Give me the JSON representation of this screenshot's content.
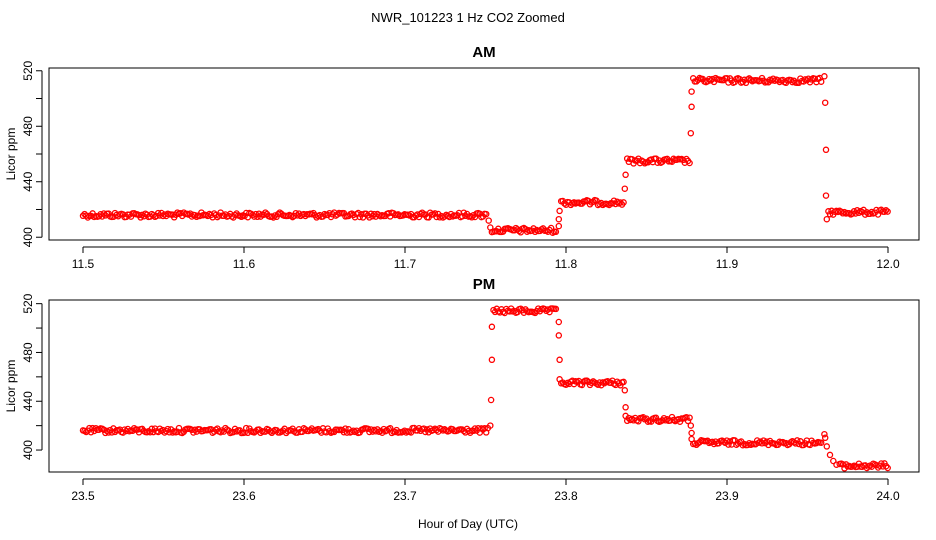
{
  "figure": {
    "title": "NWR_101223  1 Hz CO2 Zoomed",
    "xlabel": "Hour of Day (UTC)",
    "series_color": "#ff0000"
  },
  "chart_data": [
    {
      "type": "scatter",
      "title": "AM",
      "xlabel": "",
      "ylabel": "Licor ppm",
      "xlim": [
        11.5,
        12.0
      ],
      "ylim": [
        398,
        522
      ],
      "xticks": [
        11.5,
        11.6,
        11.7,
        11.8,
        11.9,
        12.0
      ],
      "xtick_labels": [
        "11.5",
        "11.6",
        "11.7",
        "11.8",
        "11.9",
        "12.0"
      ],
      "yticks": [
        400,
        420,
        440,
        460,
        480,
        500,
        520
      ],
      "ytick_labels": [
        "400",
        "",
        "440",
        "",
        "480",
        "",
        "520"
      ],
      "grid": false,
      "segments": [
        {
          "x": [
            11.5,
            11.751
          ],
          "y": 416
        },
        {
          "x": [
            11.754,
            11.794
          ],
          "y": 405
        },
        {
          "x": [
            11.797,
            11.836
          ],
          "y": 425
        },
        {
          "x": [
            11.838,
            11.877
          ],
          "y": 455
        },
        {
          "x": [
            11.879,
            11.959
          ],
          "y": 513
        },
        {
          "x": [
            11.963,
            12.0
          ],
          "y": 418
        }
      ],
      "transition_points": [
        {
          "x": 11.752,
          "y": 412
        },
        {
          "x": 11.753,
          "y": 407
        },
        {
          "x": 11.7955,
          "y": 408
        },
        {
          "x": 11.7955,
          "y": 413
        },
        {
          "x": 11.796,
          "y": 419
        },
        {
          "x": 11.8365,
          "y": 435
        },
        {
          "x": 11.837,
          "y": 445
        },
        {
          "x": 11.8775,
          "y": 475
        },
        {
          "x": 11.878,
          "y": 494
        },
        {
          "x": 11.878,
          "y": 505
        },
        {
          "x": 11.9605,
          "y": 516
        },
        {
          "x": 11.961,
          "y": 497
        },
        {
          "x": 11.9615,
          "y": 463
        },
        {
          "x": 11.9615,
          "y": 430
        },
        {
          "x": 11.962,
          "y": 413
        }
      ]
    },
    {
      "type": "scatter",
      "title": "PM",
      "xlabel": "",
      "ylabel": "Licor ppm",
      "xlim": [
        23.5,
        24.0
      ],
      "ylim": [
        382,
        523
      ],
      "xticks": [
        23.5,
        23.6,
        23.7,
        23.8,
        23.9,
        24.0
      ],
      "xtick_labels": [
        "23.5",
        "23.6",
        "23.7",
        "23.8",
        "23.9",
        "24.0"
      ],
      "yticks": [
        400,
        420,
        440,
        460,
        480,
        500,
        520
      ],
      "ytick_labels": [
        "400",
        "",
        "440",
        "",
        "480",
        "",
        "520"
      ],
      "grid": false,
      "segments": [
        {
          "x": [
            23.5,
            23.752
          ],
          "y": 416
        },
        {
          "x": [
            23.755,
            23.794
          ],
          "y": 514
        },
        {
          "x": [
            23.797,
            23.836
          ],
          "y": 455
        },
        {
          "x": [
            23.838,
            23.877
          ],
          "y": 425
        },
        {
          "x": [
            23.879,
            23.959
          ],
          "y": 406
        },
        {
          "x": [
            23.97,
            24.0
          ],
          "y": 387
        }
      ],
      "transition_points": [
        {
          "x": 23.753,
          "y": 420
        },
        {
          "x": 23.7535,
          "y": 441
        },
        {
          "x": 23.754,
          "y": 474
        },
        {
          "x": 23.754,
          "y": 501
        },
        {
          "x": 23.7955,
          "y": 505
        },
        {
          "x": 23.7955,
          "y": 494
        },
        {
          "x": 23.796,
          "y": 474
        },
        {
          "x": 23.796,
          "y": 458
        },
        {
          "x": 23.8365,
          "y": 449
        },
        {
          "x": 23.837,
          "y": 435
        },
        {
          "x": 23.837,
          "y": 428
        },
        {
          "x": 23.8775,
          "y": 420
        },
        {
          "x": 23.878,
          "y": 414
        },
        {
          "x": 23.878,
          "y": 409
        },
        {
          "x": 23.9605,
          "y": 413
        },
        {
          "x": 23.961,
          "y": 410
        },
        {
          "x": 23.962,
          "y": 403
        },
        {
          "x": 23.964,
          "y": 396
        },
        {
          "x": 23.966,
          "y": 391
        },
        {
          "x": 23.968,
          "y": 388
        }
      ]
    }
  ]
}
